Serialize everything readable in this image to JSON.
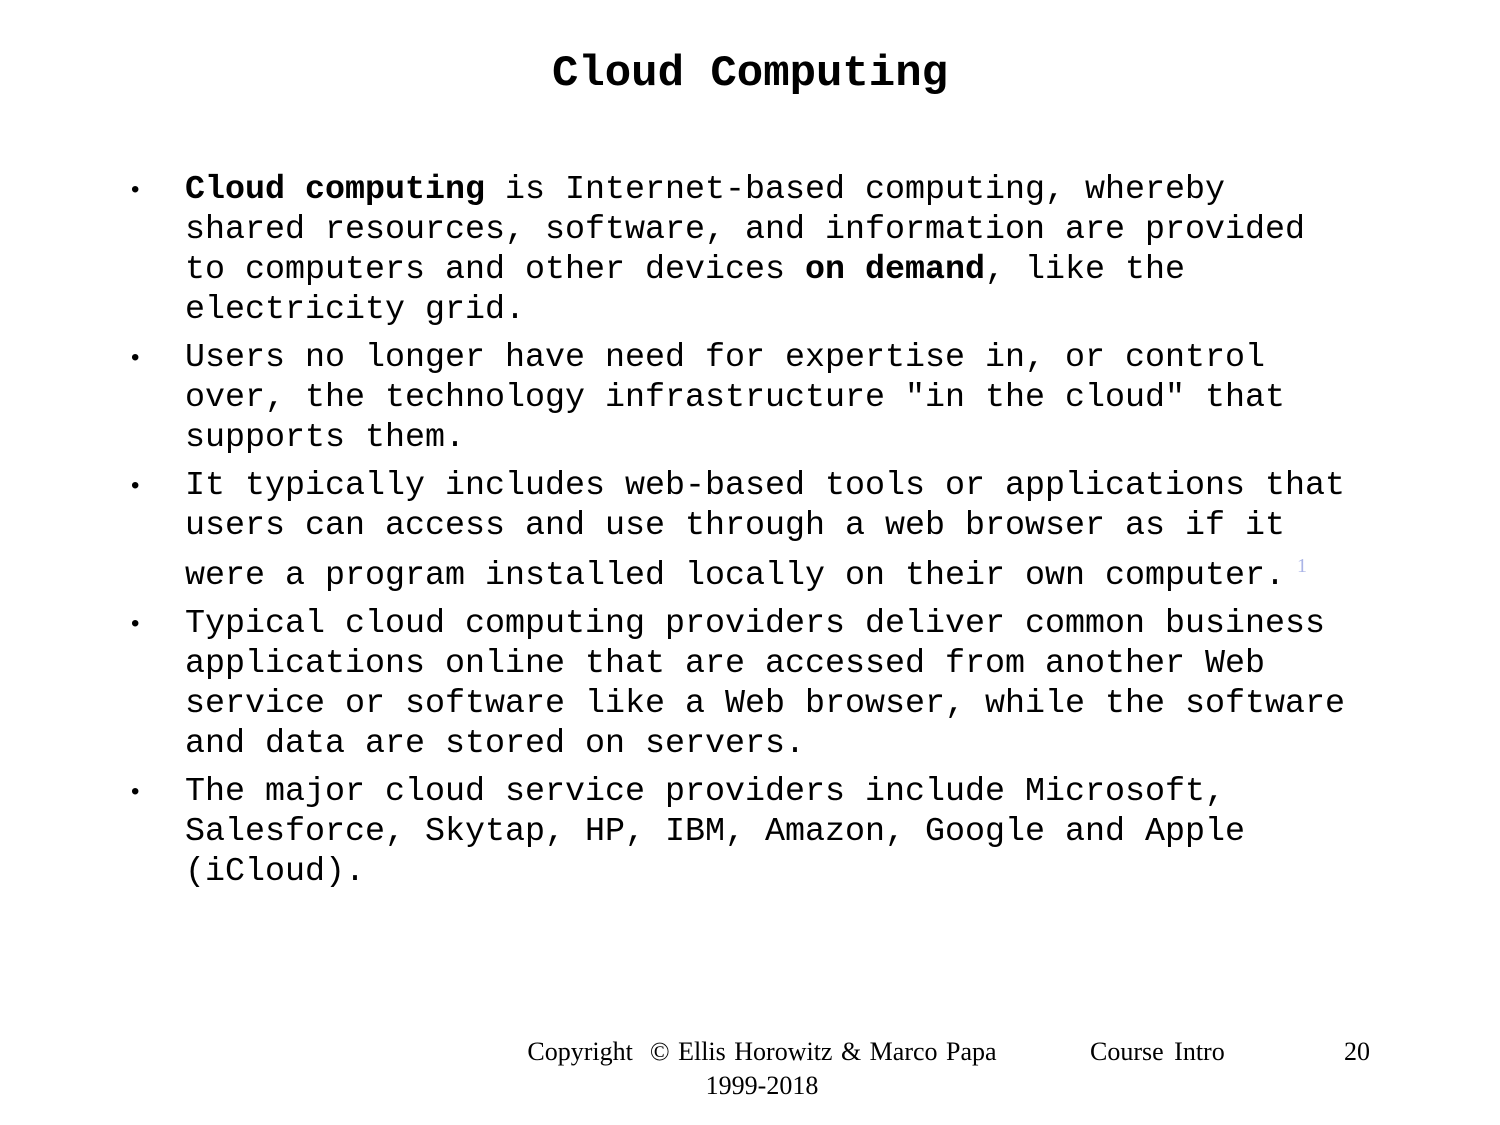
{
  "title": "Cloud Computing",
  "bullets": [
    [
      {
        "text": "Cloud computing",
        "bold": true
      },
      {
        "text": " is Internet-based computing, whereby shared resources, software, and information are provided to computers and other devices ",
        "bold": false
      },
      {
        "text": "on demand",
        "bold": true
      },
      {
        "text": ", like the electricity grid.",
        "bold": false
      }
    ],
    [
      {
        "text": "Users no longer have need for expertise in, or control over, the technology infrastructure \"in the cloud\" that supports them.",
        "bold": false
      }
    ],
    [
      {
        "text": "It typically includes web-based tools or applications that users can access and use through a web browser as if it were a program installed locally on their own computer.",
        "bold": false
      }
    ],
    [
      {
        "text": "Typical cloud computing providers deliver common business applications online that are accessed from another Web service or software like a Web browser, while the software and data are stored on servers.",
        "bold": false
      }
    ],
    [
      {
        "text": "The major cloud service providers include Microsoft, Salesforce, Skytap, HP, IBM, Amazon, Google and Apple (iCloud).",
        "bold": false
      }
    ]
  ],
  "footnote_ref": "1",
  "footer": {
    "copyright": "Copyright  © Ellis Horowitz & Marco Papa 1999-2018",
    "course": "Course Intro",
    "page": "20"
  }
}
